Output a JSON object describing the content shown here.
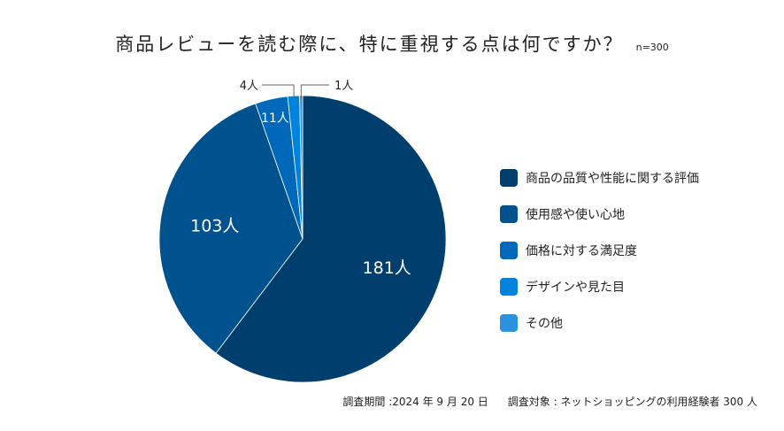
{
  "chart_data": {
    "type": "pie",
    "title": "商品レビューを読む際に、特に重視する点は何ですか？",
    "sample": "n=300",
    "categories": [
      "商品の品質や性能に関する評価",
      "使用感や使い心地",
      "価格に対する満足度",
      "デザインや見た目",
      "その他"
    ],
    "values": [
      181,
      103,
      11,
      4,
      1
    ],
    "data_labels": [
      "181人",
      "103人",
      "11人",
      "4人",
      "1人"
    ],
    "colors": [
      "#003e6e",
      "#00528f",
      "#0068b8",
      "#0083dc",
      "#2a93e0"
    ],
    "start": "top",
    "direction": "clockwise",
    "legend": "right"
  },
  "footer": {
    "period": "調査期間 :2024 年 9 月 20 日",
    "target": "調査対象 : ネットショッピングの利用経験者 300 人"
  }
}
